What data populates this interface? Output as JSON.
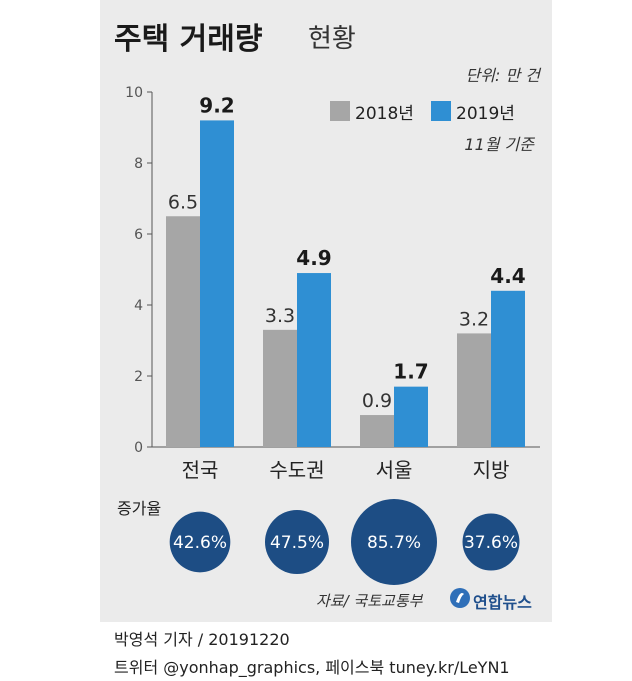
{
  "title": {
    "main": "주택 거래량",
    "sub": "현황"
  },
  "unit": "단위: 만 건",
  "basis": "11월 기준",
  "legend": [
    {
      "label": "2018년",
      "color": "#a6a6a6"
    },
    {
      "label": "2019년",
      "color": "#2f8fd3"
    }
  ],
  "chart_data": {
    "type": "bar",
    "categories": [
      "전국",
      "수도권",
      "서울",
      "지방"
    ],
    "series": [
      {
        "name": "2018년",
        "values": [
          6.5,
          3.3,
          0.9,
          3.2
        ],
        "color": "#a6a6a6"
      },
      {
        "name": "2019년",
        "values": [
          9.2,
          4.9,
          1.7,
          4.4
        ],
        "color": "#2f8fd3"
      }
    ],
    "data_labels": [
      [
        "6.5",
        "3.3",
        "0.9",
        "3.2"
      ],
      [
        "9.2",
        "4.9",
        "1.7",
        "4.4"
      ]
    ],
    "ylim": [
      0,
      10
    ],
    "yticks": [
      0,
      2,
      4,
      6,
      8,
      10
    ],
    "grid": false,
    "legend": "top-right"
  },
  "growth": {
    "title": "증가율",
    "values": [
      "42.6%",
      "47.5%",
      "85.7%",
      "37.6%"
    ],
    "percent": [
      42.6,
      47.5,
      85.7,
      37.6
    ],
    "color": "#1d4d84"
  },
  "source": "자료/ 국토교통부",
  "logo": {
    "text": "연합뉴스"
  },
  "footer": {
    "reporter": "박영석 기자 / 20191220",
    "sns": "트위터 @yonhap_graphics, 페이스북 tuney.kr/LeYN1"
  }
}
